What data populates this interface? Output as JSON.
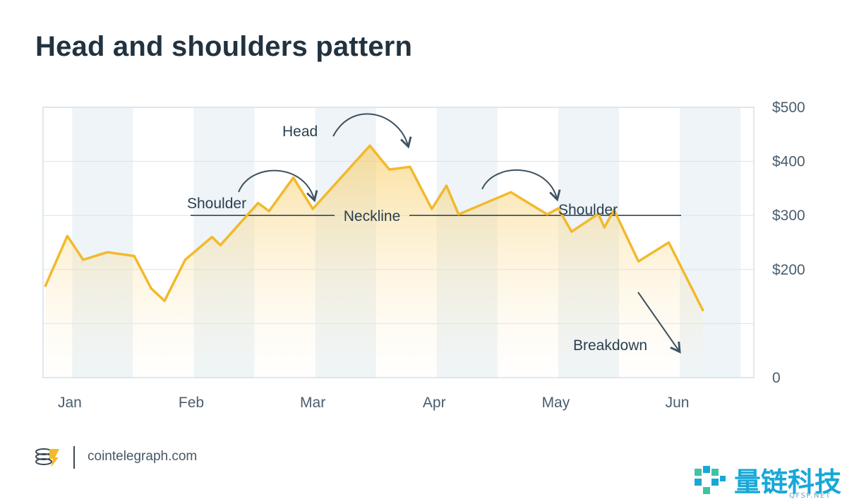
{
  "title": "Head and shoulders pattern",
  "chart_data": {
    "type": "area",
    "title": "Head and shoulders pattern",
    "xlabel": "",
    "ylabel": "",
    "x_ticks": [
      "Jan",
      "Feb",
      "Mar",
      "Apr",
      "May",
      "Jun"
    ],
    "x_tick_pos": [
      0.22,
      1.22,
      2.22,
      3.22,
      4.22,
      5.22
    ],
    "xlim": [
      0,
      5.85
    ],
    "y_ticks": [
      0,
      200,
      300,
      400,
      500
    ],
    "y_tick_labels": [
      "0",
      "$200",
      "$300",
      "$400",
      "$500"
    ],
    "ylim": [
      0,
      500
    ],
    "grid": true,
    "series": [
      {
        "color": "#f2b92c",
        "points": [
          [
            0.02,
            170
          ],
          [
            0.2,
            262
          ],
          [
            0.33,
            218
          ],
          [
            0.53,
            232
          ],
          [
            0.75,
            225
          ],
          [
            0.89,
            165
          ],
          [
            1.0,
            142
          ],
          [
            1.17,
            218
          ],
          [
            1.39,
            260
          ],
          [
            1.46,
            245
          ],
          [
            1.77,
            323
          ],
          [
            1.86,
            308
          ],
          [
            2.06,
            370
          ],
          [
            2.22,
            312
          ],
          [
            2.69,
            429
          ],
          [
            2.85,
            385
          ],
          [
            3.02,
            390
          ],
          [
            3.2,
            312
          ],
          [
            3.32,
            355
          ],
          [
            3.42,
            302
          ],
          [
            3.85,
            343
          ],
          [
            4.15,
            302
          ],
          [
            4.24,
            313
          ],
          [
            4.35,
            270
          ],
          [
            4.57,
            303
          ],
          [
            4.62,
            278
          ],
          [
            4.7,
            310
          ],
          [
            4.9,
            215
          ],
          [
            5.15,
            250
          ],
          [
            5.43,
            125
          ]
        ]
      }
    ],
    "neckline": {
      "value": 300,
      "label": "Neckline"
    },
    "annotations": [
      "Head",
      "Shoulder",
      "Shoulder",
      "Breakdown"
    ]
  },
  "footer": {
    "site": "cointelegraph.com"
  },
  "watermark": {
    "text": "量链科技",
    "sub": "QFSP.NET"
  },
  "colors": {
    "line": "#f2b92c",
    "band": "#eef4f8",
    "grid": "#d7e3eb",
    "text": "#2a3f4f",
    "arrow": "#3f5260"
  }
}
